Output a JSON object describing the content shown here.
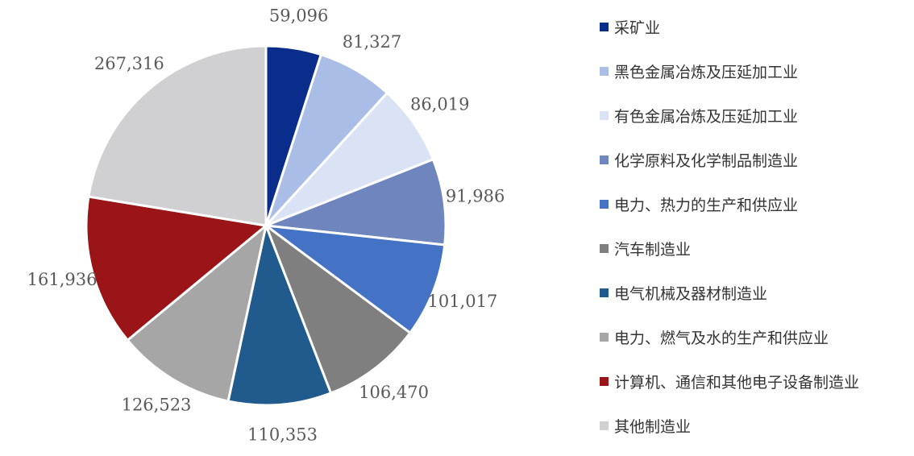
{
  "chart_data": {
    "type": "pie",
    "title": "",
    "legend_position": "right",
    "start": "12 o'clock, clockwise",
    "slices": [
      {
        "label": "采矿业",
        "value": 59096,
        "value_text": "59,096",
        "color": "#0a2d8c"
      },
      {
        "label": "黑色金属冶炼及压延加工业",
        "value": 81327,
        "value_text": "81,327",
        "color": "#a9bde6"
      },
      {
        "label": "有色金属冶炼及压延加工业",
        "value": 86019,
        "value_text": "86,019",
        "color": "#dae3f5"
      },
      {
        "label": "化学原料及化学制品制造业",
        "value": 91986,
        "value_text": "91,986",
        "color": "#6e86bd"
      },
      {
        "label": "电力、热力的生产和供应业",
        "value": 101017,
        "value_text": "101,017",
        "color": "#4472c4"
      },
      {
        "label": "汽车制造业",
        "value": 106470,
        "value_text": "106,470",
        "color": "#7f7f7f"
      },
      {
        "label": "电气机械及器材制造业",
        "value": 110353,
        "value_text": "110,353",
        "color": "#215a8c"
      },
      {
        "label": "电力、燃气及水的生产和供应业",
        "value": 126523,
        "value_text": "126,523",
        "color": "#a6a6a6"
      },
      {
        "label": "计算机、通信和其他电子设备制造业",
        "value": 161936,
        "value_text": "161,936",
        "color": "#9b1518"
      },
      {
        "label": "其他制造业",
        "value": 267316,
        "value_text": "267,316",
        "color": "#d0cfd2"
      }
    ]
  }
}
